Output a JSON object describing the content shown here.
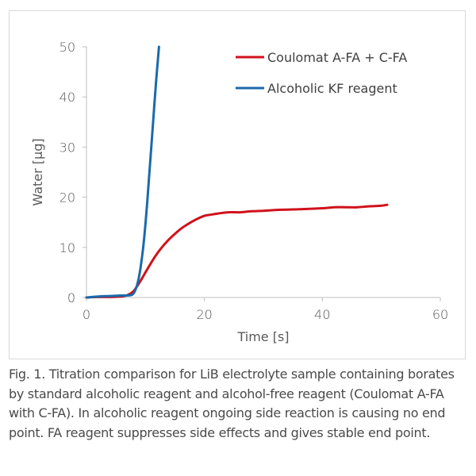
{
  "chart_data": {
    "type": "line",
    "title": "",
    "xlabel": "Time [s]",
    "ylabel": "Water [µg]",
    "xlim": [
      0,
      60
    ],
    "ylim": [
      0,
      50
    ],
    "xticks": [
      0,
      20,
      40,
      60
    ],
    "yticks": [
      0,
      10,
      20,
      30,
      40,
      50
    ],
    "grid": false,
    "legend_position": "top-right",
    "series": [
      {
        "name": "Coulomat A-FA + C-FA",
        "color": "#d0121b",
        "x": [
          0,
          2,
          4,
          6,
          7,
          8,
          9,
          10,
          11,
          12,
          13,
          14,
          15,
          16,
          17,
          18,
          19,
          20,
          21,
          22,
          24,
          26,
          28,
          30,
          33,
          36,
          40,
          42,
          44,
          46,
          48,
          50,
          51
        ],
        "y": [
          0,
          0.1,
          0.1,
          0.2,
          0.5,
          1.3,
          3.0,
          5.0,
          7.0,
          8.8,
          10.3,
          11.6,
          12.7,
          13.7,
          14.5,
          15.2,
          15.8,
          16.3,
          16.5,
          16.7,
          17.0,
          17.0,
          17.2,
          17.3,
          17.5,
          17.6,
          17.8,
          18.0,
          18.0,
          18.0,
          18.2,
          18.3,
          18.5
        ]
      },
      {
        "name": "Alcoholic KF reagent",
        "color": "#1a6aab",
        "x": [
          0,
          2,
          4,
          6,
          7,
          7.8,
          8.3,
          8.8,
          9.3,
          9.8,
          10.3,
          10.8,
          11.3,
          11.8,
          12.3
        ],
        "y": [
          0,
          0.2,
          0.3,
          0.4,
          0.4,
          0.6,
          1.5,
          3.5,
          7.0,
          12.0,
          19.0,
          27.0,
          35.0,
          43.0,
          50.0
        ]
      }
    ]
  },
  "caption": "Fig. 1. Titration comparison for LiB electrolyte sample containing borates by standard alcoholic reagent and alcohol-free reagent (Coulomat A-FA with C-FA). In alcoholic reagent ongoing side reaction is causing no end point. FA reagent suppresses side effects and gives stable end point."
}
